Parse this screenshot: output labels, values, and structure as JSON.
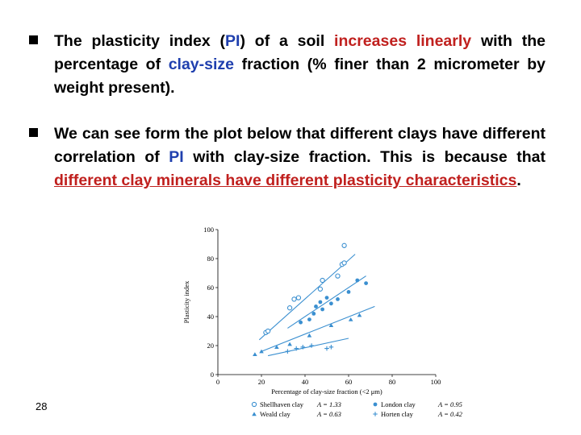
{
  "bullets": [
    {
      "parts": [
        {
          "text": "The plasticity index (",
          "style": "plain"
        },
        {
          "text": "PI",
          "style": "blue"
        },
        {
          "text": ") of a soil ",
          "style": "plain"
        },
        {
          "text": "increases linearly",
          "style": "red"
        },
        {
          "text": " with the percentage of ",
          "style": "plain"
        },
        {
          "text": "clay-size",
          "style": "blue"
        },
        {
          "text": " fraction (% finer than 2 micrometer by weight present).",
          "style": "plain"
        }
      ]
    },
    {
      "parts": [
        {
          "text": "We can see form the plot below that different clays have different correlation of ",
          "style": "plain"
        },
        {
          "text": "PI",
          "style": "blue"
        },
        {
          "text": " with clay-size fraction. This is because that ",
          "style": "plain"
        },
        {
          "text": "different clay minerals have different plasticity characteristics",
          "style": "red-underline"
        },
        {
          "text": ".",
          "style": "plain"
        }
      ]
    }
  ],
  "slide_number": "28",
  "colors": {
    "blue": "#1f3fae",
    "red": "#c0201e",
    "data": "#3a8fd0"
  },
  "chart_data": {
    "type": "scatter",
    "xlabel": "Percentage of clay-size fraction (<2 μm)",
    "ylabel": "Plasticity index",
    "xlim": [
      0,
      100
    ],
    "ylim": [
      0,
      100
    ],
    "x_ticks": [
      "0",
      "20",
      "40",
      "60",
      "80",
      "100"
    ],
    "y_ticks": [
      "0",
      "20",
      "40",
      "60",
      "80",
      "100"
    ],
    "grid": false,
    "legend_position": "bottom",
    "series": [
      {
        "name": "Shellhaven clay",
        "annotation": "A = 1.33",
        "marker": "open-circle",
        "points": [
          [
            22,
            29
          ],
          [
            23,
            30
          ],
          [
            33,
            46
          ],
          [
            35,
            52
          ],
          [
            37,
            53
          ],
          [
            47,
            59
          ],
          [
            48,
            65
          ],
          [
            55,
            68
          ],
          [
            57,
            76
          ],
          [
            58,
            77
          ],
          [
            58,
            89
          ]
        ],
        "line": [
          [
            19,
            24
          ],
          [
            63,
            83
          ]
        ]
      },
      {
        "name": "London clay",
        "annotation": "A = 0.95",
        "marker": "filled-circle",
        "points": [
          [
            38,
            36
          ],
          [
            42,
            38
          ],
          [
            44,
            42
          ],
          [
            45,
            47
          ],
          [
            47,
            50
          ],
          [
            48,
            45
          ],
          [
            50,
            53
          ],
          [
            52,
            49
          ],
          [
            55,
            52
          ],
          [
            60,
            57
          ],
          [
            64,
            65
          ],
          [
            68,
            63
          ]
        ],
        "line": [
          [
            32,
            32
          ],
          [
            68,
            68
          ]
        ]
      },
      {
        "name": "Weald clay",
        "annotation": "A = 0.63",
        "marker": "triangle",
        "points": [
          [
            17,
            14
          ],
          [
            20,
            16
          ],
          [
            27,
            19
          ],
          [
            33,
            21
          ],
          [
            42,
            27
          ],
          [
            52,
            34
          ],
          [
            61,
            38
          ],
          [
            65,
            41
          ]
        ],
        "line": [
          [
            20,
            16
          ],
          [
            72,
            47
          ]
        ]
      },
      {
        "name": "Horten clay",
        "annotation": "A = 0.42",
        "marker": "plus",
        "points": [
          [
            32,
            16
          ],
          [
            36,
            18
          ],
          [
            39,
            19
          ],
          [
            43,
            20
          ],
          [
            50,
            18
          ],
          [
            52,
            19
          ]
        ],
        "line": [
          [
            23,
            13
          ],
          [
            60,
            25
          ]
        ]
      }
    ]
  }
}
